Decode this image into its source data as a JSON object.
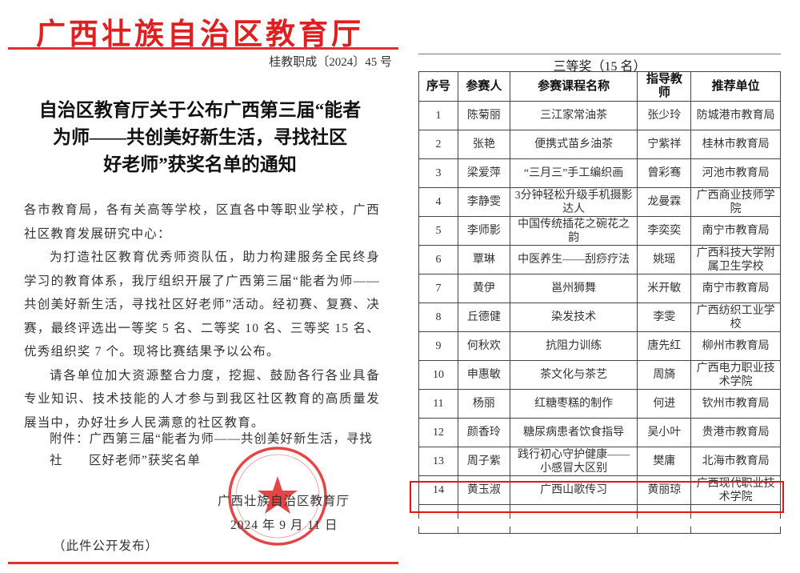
{
  "notice": {
    "masthead": "广西壮族自治区教育厅",
    "doc_number": "桂教职成〔2024〕45 号",
    "title_lines": [
      "自治区教育厅关于公布广西第三届“能者",
      "为师——共创美好新生活，寻找社区",
      "好老师”获奖名单的通知"
    ],
    "addressee": "各市教育局，各有关高等学校，区直各中等职业学校，广西社区教育发展研究中心：",
    "paragraphs": [
      "为打造社区教育优秀师资队伍，助力构建服务全民终身学习的教育体系，我厅组织开展了广西第三届“能者为师——共创美好新生活，寻找社区好老师”活动。经初赛、复赛、决赛，最终评选出一等奖 5 名、二等奖 10 名、三等奖 15 名、优秀组织奖 7 个。现将比赛结果予以公布。",
      "请各单位加大资源整合力度，挖掘、鼓励各行各业具备专业知识、技术技能的人才参与到我区社区教育的高质量发展当中，办好壮乡人民满意的社区教育。"
    ],
    "attachment_line1": "附件：广西第三届“能者为师——共创美好新生活，寻找社",
    "attachment_line2": "区好老师”获奖名单",
    "signature": "广西壮族自治区教育厅",
    "date": "2024 年 9 月 11 日",
    "publication_note": "（此件公开发布）",
    "seal_text": "广西壮族自治区教育厅 GUANGXI BOUXCUENGH SWCIGIH GIZYUZ",
    "colors": {
      "red": "#e02020"
    }
  },
  "award_list": {
    "caption": "三等奖（15 名）",
    "headers": [
      "序号",
      "参赛人",
      "参赛课程名称",
      "指导教师",
      "推荐单位"
    ],
    "rows": [
      [
        "1",
        "陈菊丽",
        "三江家常油茶",
        "张少玲",
        "防城港市教育局"
      ],
      [
        "2",
        "张艳",
        "便携式苗乡油茶",
        "宁紫祥",
        "桂林市教育局"
      ],
      [
        "3",
        "梁爱萍",
        "“三月三”手工编织画",
        "曾彩骞",
        "河池市教育局"
      ],
      [
        "4",
        "李静雯",
        "3分钟轻松升级手机摄影达人",
        "龙曼霖",
        "广西商业技师学院"
      ],
      [
        "5",
        "李师影",
        "中国传统插花之碗花之韵",
        "李奕奕",
        "南宁市教育局"
      ],
      [
        "6",
        "覃琳",
        "中医养生——刮痧疗法",
        "姚瑶",
        "广西科技大学附属卫生学校"
      ],
      [
        "7",
        "黄伊",
        "邕州狮舞",
        "米开敏",
        "南宁市教育局"
      ],
      [
        "8",
        "丘德健",
        "染发技术",
        "李雯",
        "广西纺织工业学校"
      ],
      [
        "9",
        "何秋欢",
        "抗阻力训练",
        "唐先红",
        "柳州市教育局"
      ],
      [
        "10",
        "申惠敏",
        "茶文化与茶艺",
        "周旖",
        "广西电力职业技术学院"
      ],
      [
        "11",
        "杨丽",
        "红糖枣糕的制作",
        "何进",
        "钦州市教育局"
      ],
      [
        "12",
        "颜香玲",
        "糖尿病患者饮食指导",
        "吴小叶",
        "贵港市教育局"
      ],
      [
        "13",
        "周子紫",
        "践行初心守护健康——小感冒大区别",
        "樊庸",
        "北海市教育局"
      ],
      [
        "14",
        "黄玉淑",
        "广西山歌传习",
        "黄丽琼",
        "广西现代职业技术学院"
      ]
    ],
    "highlighted_row": 14,
    "highlight_color": "#e01818"
  }
}
